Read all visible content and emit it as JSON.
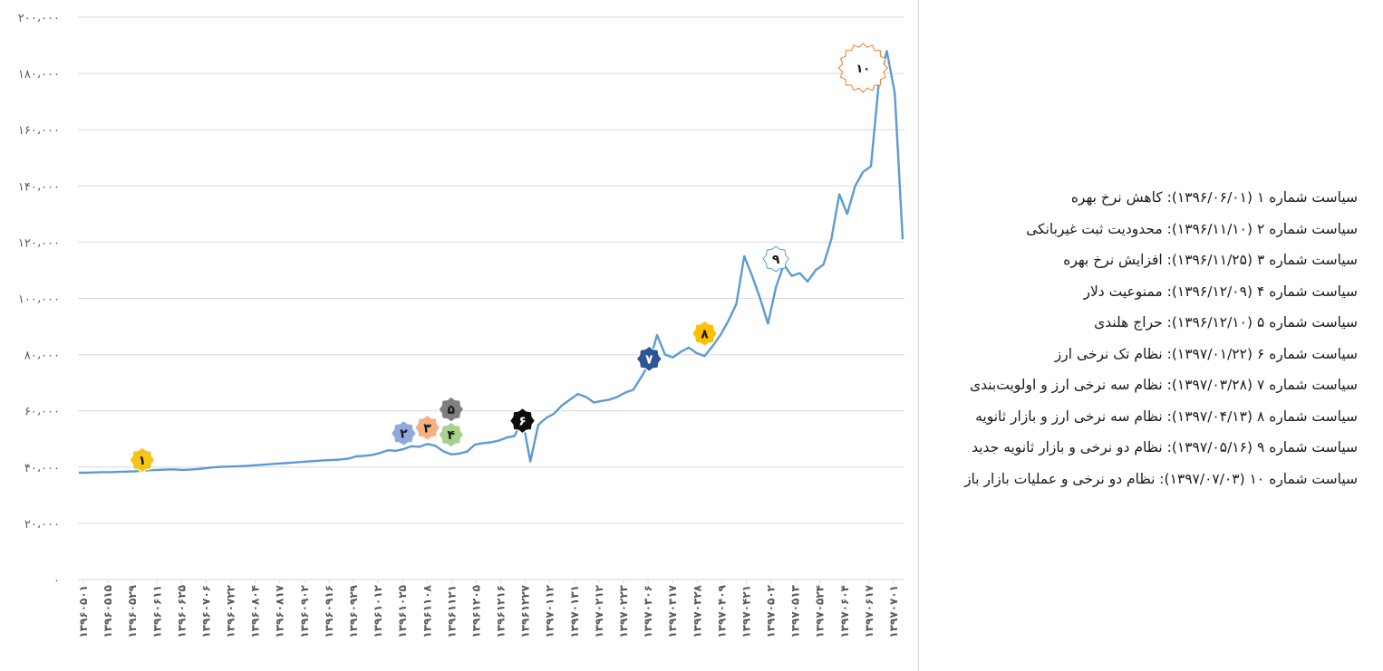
{
  "chart_data": {
    "type": "line",
    "title": "",
    "xlabel": "",
    "ylabel": "",
    "ylim": [
      0,
      200000
    ],
    "y_ticks": [
      0,
      20000,
      40000,
      60000,
      80000,
      100000,
      120000,
      140000,
      160000,
      180000,
      200000
    ],
    "y_tick_labels": [
      "۰",
      "۲۰،۰۰۰",
      "۴۰،۰۰۰",
      "۶۰،۰۰۰",
      "۸۰،۰۰۰",
      "۱۰۰،۰۰۰",
      "۱۲۰،۰۰۰",
      "۱۴۰،۰۰۰",
      "۱۶۰،۰۰۰",
      "۱۸۰،۰۰۰",
      "۲۰۰،۰۰۰"
    ],
    "x_tick_labels": [
      "۱۳۹۶۰۵۰۱",
      "۱۳۹۶۰۵۱۵",
      "۱۳۹۶۰۵۲۹",
      "۱۳۹۶۰۶۱۱",
      "۱۳۹۶۰۶۲۵",
      "۱۳۹۶۰۷۰۶",
      "۱۳۹۶۰۷۲۲",
      "۱۳۹۶۰۸۰۴",
      "۱۳۹۶۰۸۱۷",
      "۱۳۹۶۰۹۰۲",
      "۱۳۹۶۰۹۱۶",
      "۱۳۹۶۰۹۲۹",
      "۱۳۹۶۱۰۱۲",
      "۱۳۹۶۱۰۲۵",
      "۱۳۹۶۱۱۰۸",
      "۱۳۹۶۱۱۲۱",
      "۱۳۹۶۱۲۰۵",
      "۱۳۹۶۱۲۱۶",
      "۱۳۹۶۱۲۲۷",
      "۱۳۹۷۰۱۱۲",
      "۱۳۹۷۰۱۳۱",
      "۱۳۹۷۰۲۱۲",
      "۱۳۹۷۰۲۲۳",
      "۱۳۹۷۰۳۰۶",
      "۱۳۹۷۰۳۱۷",
      "۱۳۹۷۰۳۲۸",
      "۱۳۹۷۰۴۰۹",
      "۱۳۹۷۰۴۲۱",
      "۱۳۹۷۰۵۰۲",
      "۱۳۹۷۰۵۱۳",
      "۱۳۹۷۰۵۲۴",
      "۱۳۹۷۰۶۰۴",
      "۱۳۹۷۰۶۱۷",
      "۱۳۹۷۰۷۰۱"
    ],
    "grid": true,
    "legend_placement": "right",
    "series": [
      {
        "values": [
          38000,
          38000,
          38100,
          38200,
          38200,
          38300,
          38400,
          38500,
          38700,
          38900,
          39000,
          39100,
          39200,
          39000,
          39100,
          39300,
          39600,
          39900,
          40100,
          40200,
          40300,
          40400,
          40600,
          40800,
          41000,
          41200,
          41400,
          41600,
          41800,
          42000,
          42200,
          42400,
          42500,
          42700,
          43000,
          43800,
          44000,
          44300,
          45000,
          46000,
          45800,
          46400,
          47400,
          47200,
          48200,
          47600,
          45600,
          44500,
          44800,
          45500,
          48000,
          48500,
          48800,
          49400,
          50500,
          51000,
          57000,
          42000,
          55000,
          57500,
          59000,
          62000,
          64000,
          66000,
          65000,
          63000,
          63500,
          64000,
          65000,
          66500,
          67500,
          72000,
          77000,
          87000,
          80000,
          79000,
          81000,
          82500,
          80500,
          79500,
          83000,
          87000,
          92000,
          98000,
          115000,
          108000,
          100000,
          91000,
          104000,
          112000,
          108000,
          109000,
          106000,
          110000,
          112000,
          121000,
          137000,
          130000,
          140000,
          145000,
          147000,
          177000,
          188000,
          173000,
          121000
        ]
      }
    ],
    "annotations": [
      {
        "label": "۱",
        "x_index": 8,
        "value": 42500
      },
      {
        "label": "۲",
        "x_index": 41,
        "value": 52000
      },
      {
        "label": "۳",
        "x_index": 44,
        "value": 54000
      },
      {
        "label": "۴",
        "x_index": 47,
        "value": 51500
      },
      {
        "label": "۵",
        "x_index": 47,
        "value": 60500
      },
      {
        "label": "۶",
        "x_index": 56,
        "value": 56500
      },
      {
        "label": "۷",
        "x_index": 72,
        "value": 78500
      },
      {
        "label": "۸",
        "x_index": 79,
        "value": 87500
      },
      {
        "label": "۹",
        "x_index": 88,
        "value": 114000
      },
      {
        "label": "۱۰",
        "x_index": 99,
        "value": 182000
      }
    ]
  },
  "policy_list": [
    "سیاست شماره ۱ (۱۳۹۶/۰۶/۰۱): کاهش نرخ بهره",
    "سیاست شماره ۲ (۱۳۹۶/۱۱/۱۰): محدودیت ثبت غیربانکی",
    "سیاست شماره ۳ (۱۳۹۶/۱۱/۲۵): افزایش نرخ بهره",
    "سیاست شماره ۴ (۱۳۹۶/۱۲/۰۹): ممنوعیت دلار",
    "سیاست شماره ۵ (۱۳۹۶/۱۲/۱۰): حراج هلندی",
    "سیاست شماره ۶ (۱۳۹۷/۰۱/۲۲): نظام تک نرخی ارز",
    "سیاست شماره ۷ (۱۳۹۷/۰۳/۲۸): نظام سه نرخی ارز و اولویت‌بندی",
    "سیاست شماره ۸ (۱۳۹۷/۰۴/۱۳): نظام سه نرخی ارز و بازار ثانویه",
    "سیاست شماره ۹ (۱۳۹۷/۰۵/۱۶): نظام دو نرخی و بازار ثانویه جدید",
    "سیاست شماره ۱۰ (۱۳۹۷/۰۷/۰۳): نظام دو نرخی و عملیات بازار باز"
  ],
  "colors": {
    "line": "#5b9bd5",
    "grid": "#d9d9d9",
    "axis_text": "#595959",
    "badge_1": "#f5c518",
    "badge_2": "#8ea9db",
    "badge_3": "#f4b183",
    "badge_4": "#a9d18e",
    "badge_5": "#7f7f7f",
    "badge_6": "#0d0d0d",
    "badge_7": "#2f5597",
    "badge_8": "#ffc000",
    "badge_9": "#ffffff",
    "badge_10": "#ffffff"
  }
}
